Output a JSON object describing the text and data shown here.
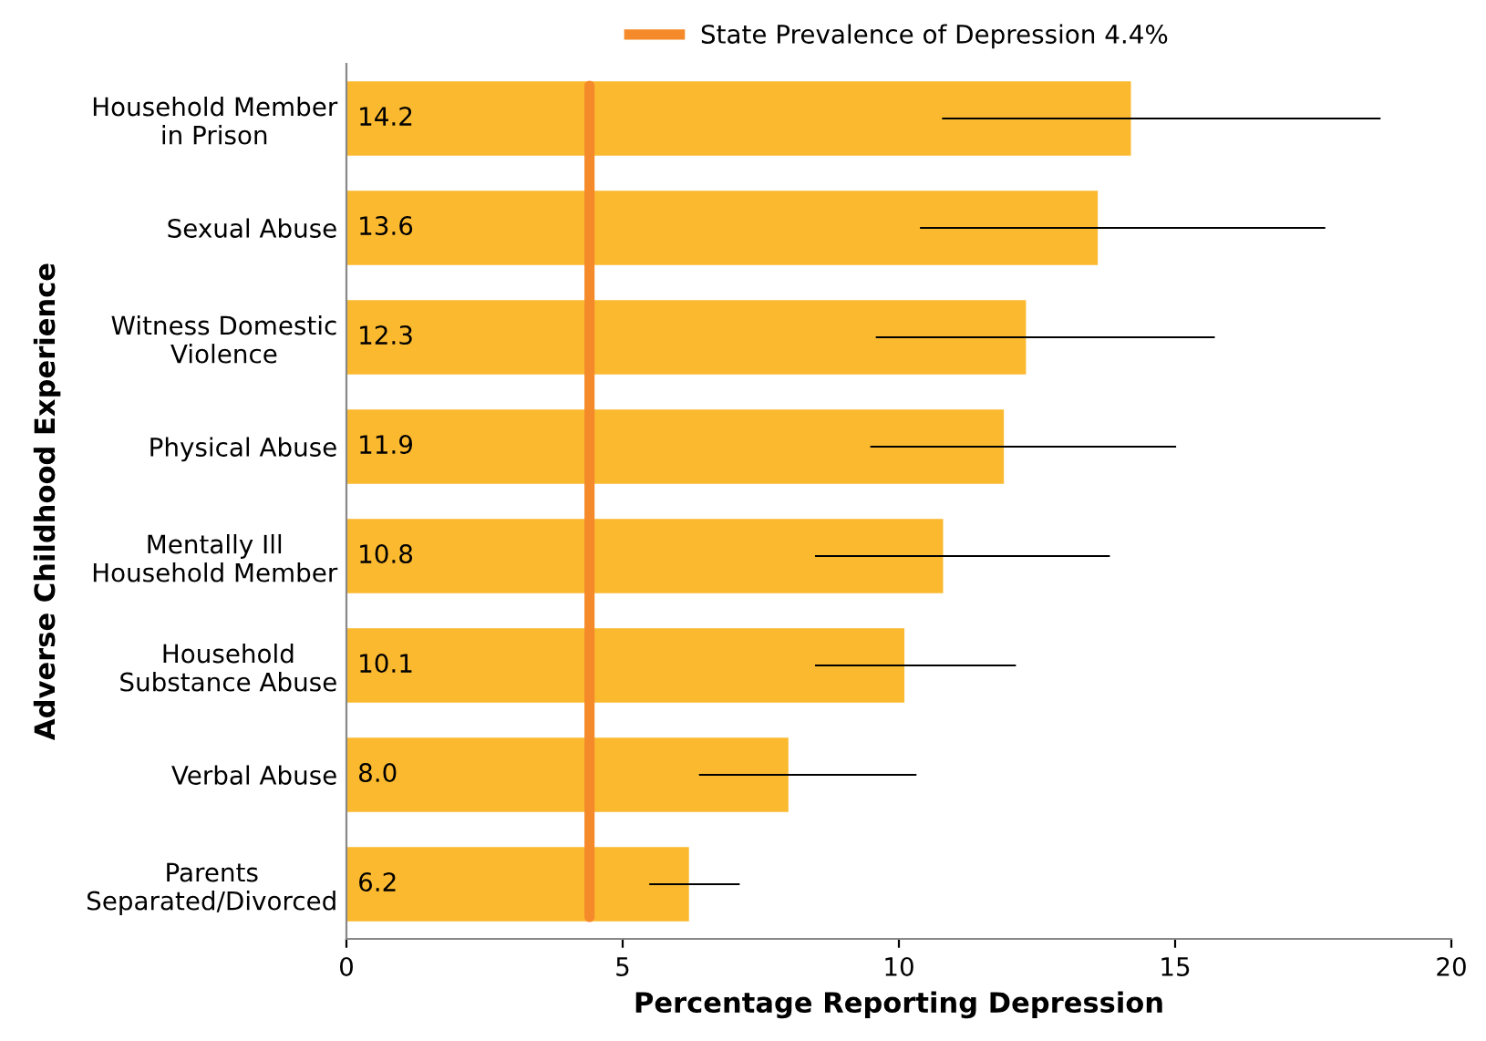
{
  "chart_data": {
    "type": "bar",
    "orientation": "horizontal",
    "xlabel": "Percentage Reporting Depression",
    "ylabel": "Adverse Childhood Experience",
    "categories": [
      "Household Member\nin Prison",
      "Sexual Abuse",
      "Witness Domestic\nViolence",
      "Physical Abuse",
      "Mentally Ill\nHousehold Member",
      "Household\nSubstance Abuse",
      "Verbal Abuse",
      "Parents\nSeparated/Divorced"
    ],
    "values": [
      14.2,
      13.6,
      12.3,
      11.9,
      10.8,
      10.1,
      8.0,
      6.2
    ],
    "value_labels": [
      "14.2",
      "13.6",
      "12.3",
      "11.9",
      "10.8",
      "10.1",
      "8.0",
      "6.2"
    ],
    "errors": [
      [
        10.8,
        18.7
      ],
      [
        10.4,
        17.7
      ],
      [
        9.6,
        15.7
      ],
      [
        9.5,
        15.0
      ],
      [
        8.5,
        13.8
      ],
      [
        8.5,
        12.1
      ],
      [
        6.4,
        10.3
      ],
      [
        5.5,
        7.1
      ]
    ],
    "color": "#fbb92f",
    "xlim": [
      0,
      20
    ],
    "xticks": [
      0,
      5,
      10,
      15,
      20
    ],
    "ref_lines": [
      {
        "axis": "x",
        "value": 4.4,
        "label": "State Prevalence of Depression 4.4%",
        "color": "#f58a2a"
      }
    ],
    "grid": false,
    "legend": "top"
  }
}
